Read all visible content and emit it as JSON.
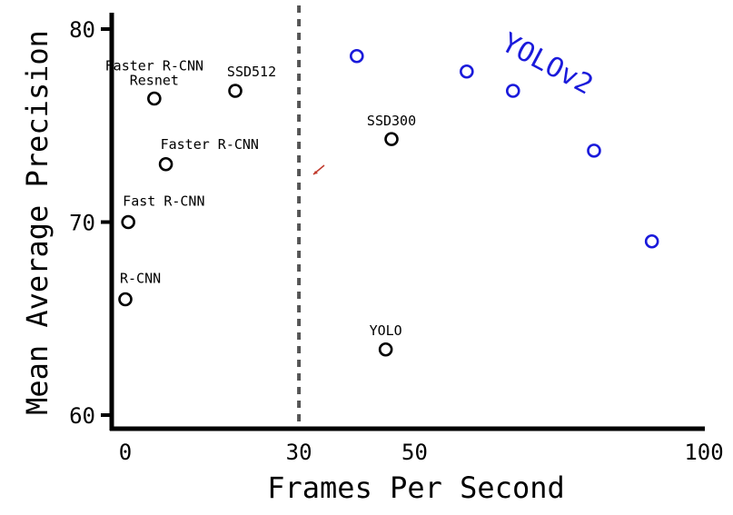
{
  "chart_data": {
    "type": "scatter",
    "xlabel": "Frames Per Second",
    "ylabel": "Mean Average Precision",
    "xlim": [
      -2,
      100
    ],
    "ylim": [
      59,
      81
    ],
    "x_ticks": [
      0,
      30,
      50,
      100
    ],
    "y_ticks": [
      60,
      70,
      80
    ],
    "grid": false,
    "reference_line": {
      "x": 30,
      "style": "dashed"
    },
    "colors": {
      "detectors": "#000000",
      "yolov2": "#1a1adb",
      "reference_line": "#555555"
    },
    "series": [
      {
        "points": [
          {
            "x": 0,
            "y": 66,
            "label": "R-CNN"
          },
          {
            "x": 0.5,
            "y": 70,
            "label": "Fast R-CNN"
          },
          {
            "x": 7,
            "y": 73,
            "label": "Faster R-CNN"
          },
          {
            "x": 5,
            "y": 76.4,
            "label": "Faster R-CNN Resnet"
          },
          {
            "x": 19,
            "y": 76.8,
            "label": "SSD512"
          },
          {
            "x": 46,
            "y": 74.3,
            "label": "SSD300"
          },
          {
            "x": 45,
            "y": 63.4,
            "label": "YOLO"
          }
        ]
      },
      {
        "name": "YOLOv2",
        "points": [
          {
            "x": 40,
            "y": 78.6
          },
          {
            "x": 59,
            "y": 77.8
          },
          {
            "x": 67,
            "y": 76.8
          },
          {
            "x": 81,
            "y": 73.7
          },
          {
            "x": 91,
            "y": 69
          }
        ]
      }
    ]
  }
}
